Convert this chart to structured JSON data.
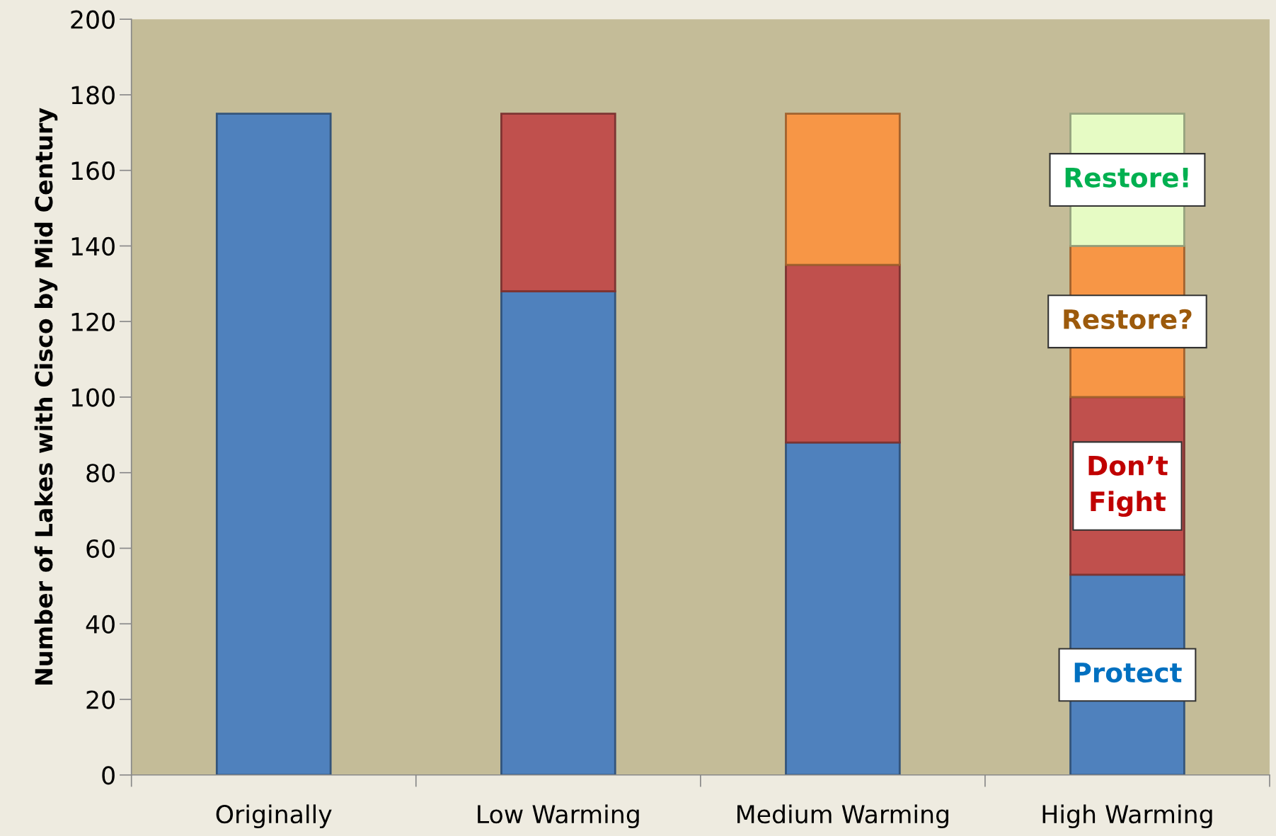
{
  "chart_data": {
    "type": "bar",
    "stacked": true,
    "ylabel": "Number of Lakes with Cisco by Mid Century",
    "categories": [
      "Originally",
      "Low Warming",
      "Medium Warming",
      "High Warming"
    ],
    "series": [
      {
        "color": "#4f81bd",
        "values": [
          175,
          128,
          88,
          53
        ]
      },
      {
        "color": "#c0504d",
        "values": [
          null,
          47,
          47,
          47
        ]
      },
      {
        "color": "#f79646",
        "values": [
          null,
          null,
          40,
          40
        ]
      },
      {
        "color": "#e6fbc4",
        "values": [
          null,
          null,
          null,
          35
        ]
      }
    ],
    "ylim": [
      0,
      200
    ],
    "yticks": [
      0,
      20,
      40,
      60,
      80,
      100,
      120,
      140,
      160,
      180,
      200
    ],
    "grid": false,
    "legend": false,
    "annotations": [
      "Restore!",
      "Restore?",
      "Don’t\nFight",
      "Protect"
    ]
  }
}
